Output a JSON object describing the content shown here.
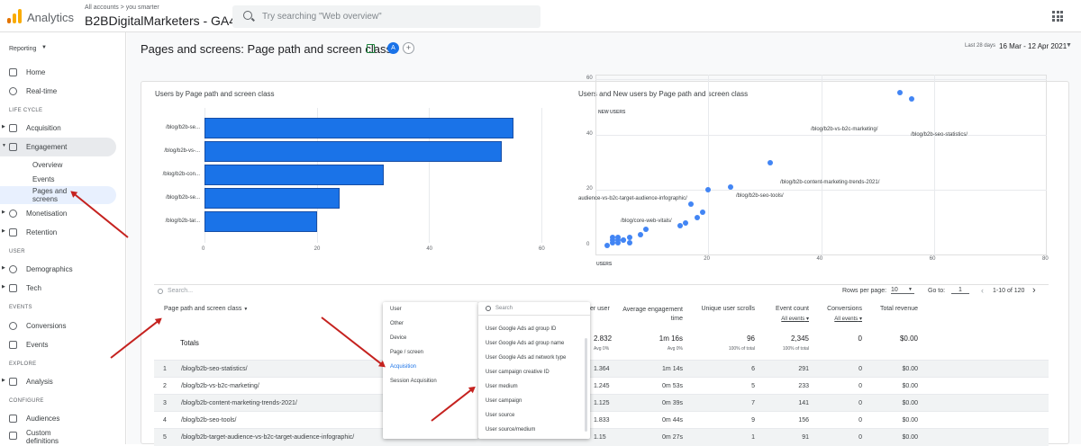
{
  "app": {
    "name": "Analytics",
    "breadcrumb": "All accounts > you smarter",
    "property": "B2BDigitalMarketers - GA4"
  },
  "search": {
    "placeholder": "Try searching \"Web overview\""
  },
  "sidebar": {
    "reporting": "Reporting",
    "home": "Home",
    "realtime": "Real-time",
    "lifecycle": "LIFE CYCLE",
    "acquisition": "Acquisition",
    "engagement": "Engagement",
    "overview": "Overview",
    "events": "Events",
    "pages_screens": "Pages and screens",
    "monetisation": "Monetisation",
    "retention": "Retention",
    "user": "USER",
    "demographics": "Demographics",
    "tech": "Tech",
    "events_sec": "EVENTS",
    "conversions": "Conversions",
    "events2": "Events",
    "explore": "EXPLORE",
    "analysis": "Analysis",
    "configure": "CONFIGURE",
    "audiences": "Audiences",
    "custom_definitions": "Custom definitions"
  },
  "page": {
    "title": "Pages and screens: Page path and screen class",
    "badge": "A",
    "date_label": "Last 28 days",
    "date_range": "16 Mar - 12 Apr 2021"
  },
  "chart1": {
    "title": "Users by Page path and screen class",
    "labels": [
      "/blog/b2b-se...",
      "/blog/b2b-vs-...",
      "/blog/b2b-con...",
      "/blog/b2b-se...",
      "/blog/b2b-tar..."
    ],
    "ticks": [
      "0",
      "20",
      "40",
      "60"
    ]
  },
  "chart2": {
    "title": "Users and New users by Page path and screen class",
    "y_title": "NEW USERS",
    "x_title": "USERS",
    "y_ticks": [
      "60",
      "40",
      "20",
      "0"
    ],
    "x_ticks": [
      "20",
      "40",
      "60",
      "80"
    ],
    "point_labels": [
      "/blog/b2b-vs-b2c-marketing/",
      "/blog/b2b-seo-statistics/",
      "/blog/b2b-content-marketing-trends-2021/",
      "/blog/b2b-seo-tools/",
      "audience-vs-b2c-target-audience-infographic/",
      "/blog/core-web-vitals/"
    ]
  },
  "chart_data": [
    {
      "type": "bar",
      "title": "Users by Page path and screen class",
      "categories": [
        "/blog/b2b-se...",
        "/blog/b2b-vs-...",
        "/blog/b2b-con...",
        "/blog/b2b-se...",
        "/blog/b2b-tar..."
      ],
      "values": [
        55,
        53,
        32,
        24,
        20
      ],
      "xlim": [
        0,
        60
      ]
    },
    {
      "type": "scatter",
      "title": "Users and New users by Page path and screen class",
      "xlabel": "USERS",
      "ylabel": "NEW USERS",
      "xlim": [
        0,
        80
      ],
      "ylim": [
        0,
        60
      ],
      "points": [
        [
          54,
          55
        ],
        [
          56,
          53
        ],
        [
          31,
          30
        ],
        [
          24,
          21
        ],
        [
          20,
          20
        ],
        [
          17,
          15
        ],
        [
          19,
          12
        ],
        [
          18,
          10
        ],
        [
          16,
          8
        ],
        [
          15,
          7
        ],
        [
          9,
          6
        ],
        [
          8,
          4
        ],
        [
          6,
          3
        ],
        [
          5,
          2
        ],
        [
          4,
          2
        ],
        [
          3,
          1
        ],
        [
          2,
          0
        ],
        [
          3,
          3
        ],
        [
          4,
          3
        ],
        [
          5,
          2
        ],
        [
          6,
          1
        ],
        [
          4,
          1
        ],
        [
          3,
          2
        ]
      ]
    }
  ],
  "table": {
    "search_placeholder": "Search...",
    "rows_per_page_label": "Rows per page:",
    "rows_per_page": "10",
    "goto_label": "Go to:",
    "goto_value": "1",
    "pagination": "1-10 of 120",
    "dim_header": "Page path and screen class",
    "col_users": "er user",
    "col_avg": "Average engagement time",
    "col_scrolls": "Unique user scrolls",
    "col_events": "Event count",
    "col_events_sub": "All events",
    "col_conv": "Conversions",
    "col_conv_sub": "All events",
    "col_rev": "Total revenue",
    "totals": {
      "label": "Totals",
      "users": "2.832",
      "users_sub": "Avg 0%",
      "avg": "1m 16s",
      "avg_sub": "Avg 0%",
      "scrolls": "96",
      "scrolls_sub": "100% of total",
      "events": "2,345",
      "events_sub": "100% of total",
      "conv": "0",
      "rev": "$0.00"
    },
    "rows": [
      {
        "n": "1",
        "path": "/blog/b2b-seo-statistics/",
        "u": "1.364",
        "avg": "1m 14s",
        "s": "6",
        "e": "291",
        "c": "0",
        "r": "$0.00"
      },
      {
        "n": "2",
        "path": "/blog/b2b-vs-b2c-marketing/",
        "u": "1.245",
        "avg": "0m 53s",
        "s": "5",
        "e": "233",
        "c": "0",
        "r": "$0.00"
      },
      {
        "n": "3",
        "path": "/blog/b2b-content-marketing-trends-2021/",
        "u": "1.125",
        "avg": "0m 39s",
        "s": "7",
        "e": "141",
        "c": "0",
        "r": "$0.00"
      },
      {
        "n": "4",
        "path": "/blog/b2b-seo-tools/",
        "u": "1.833",
        "avg": "0m 44s",
        "s": "9",
        "e": "156",
        "c": "0",
        "r": "$0.00"
      },
      {
        "n": "5",
        "path": "/blog/b2b-target-audience-vs-b2c-target-audience-infographic/",
        "u": "1.15",
        "avg": "0m 27s",
        "s": "1",
        "e": "91",
        "c": "0",
        "r": "$0.00"
      }
    ]
  },
  "menu_left": [
    "User",
    "Other",
    "Device",
    "Page / screen",
    "Acquisition",
    "Session Acquisition"
  ],
  "menu_right": {
    "search": "Search",
    "items": [
      "User Google Ads ad group ID",
      "User Google Ads ad group name",
      "User Google Ads ad network type",
      "User campaign creative ID",
      "User medium",
      "User campaign",
      "User source",
      "User source/medium"
    ]
  },
  "colors": {
    "accent": "#1a73e8",
    "arrow": "#c5221f",
    "selected": "#e8f0fe"
  }
}
